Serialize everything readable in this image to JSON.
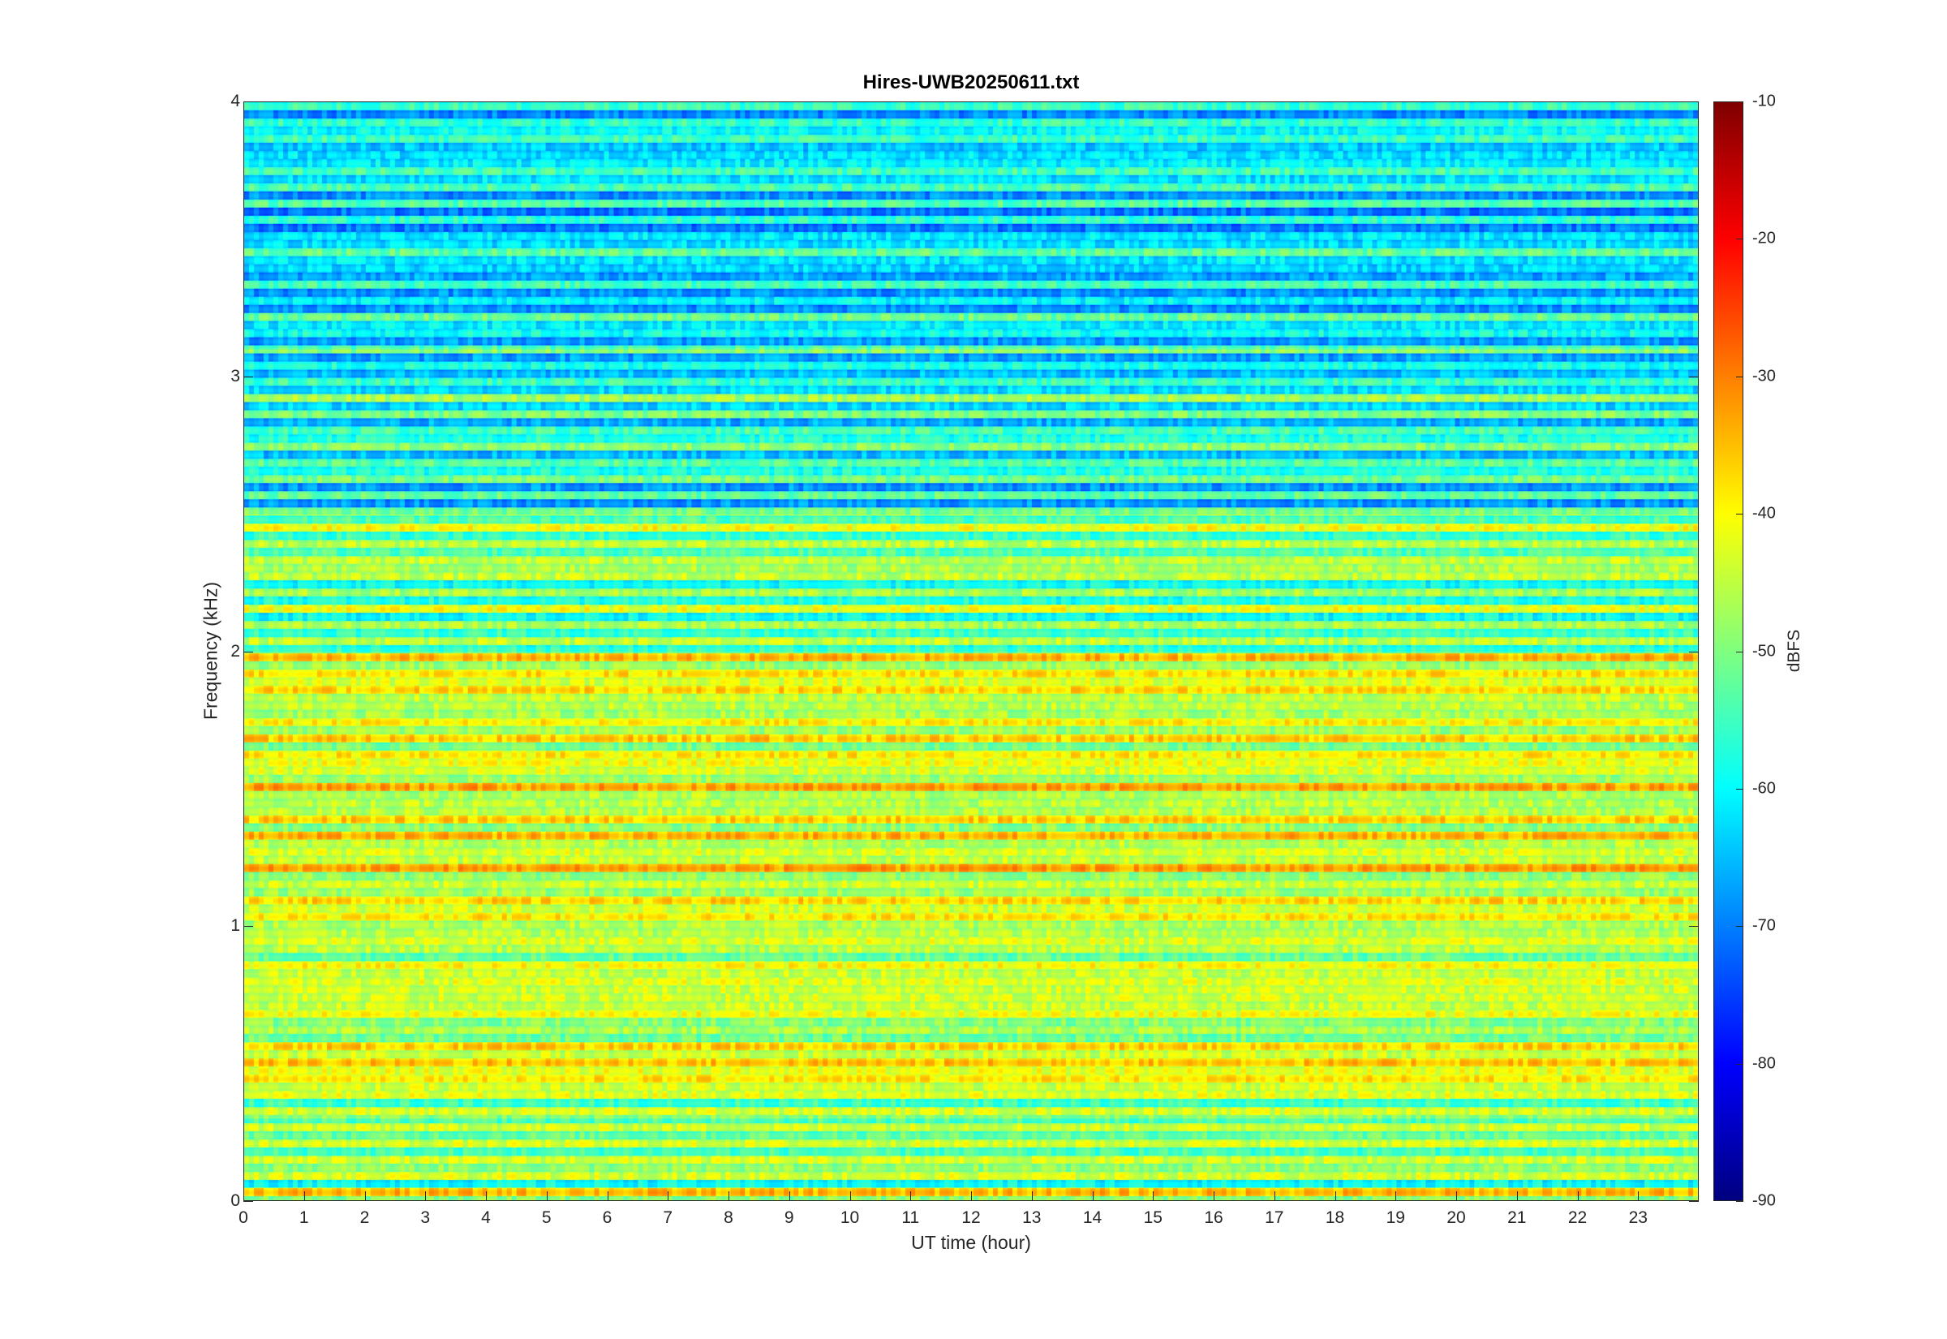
{
  "chart_data": {
    "type": "heatmap",
    "title": "Hires-UWB20250611.txt",
    "xlabel": "UT time (hour)",
    "ylabel": "Frequency (kHz)",
    "xlim": [
      0,
      24
    ],
    "ylim": [
      0,
      4
    ],
    "x_ticks": [
      "0",
      "1",
      "2",
      "3",
      "4",
      "5",
      "6",
      "7",
      "8",
      "9",
      "10",
      "11",
      "12",
      "13",
      "14",
      "15",
      "16",
      "17",
      "18",
      "19",
      "20",
      "21",
      "22",
      "23"
    ],
    "y_ticks": [
      "0",
      "1",
      "2",
      "3",
      "4"
    ],
    "colorbar": {
      "label": "dBFS",
      "range": [
        -90,
        -10
      ],
      "ticks": [
        "-10",
        "-20",
        "-30",
        "-40",
        "-50",
        "-60",
        "-70",
        "-80",
        "-90"
      ],
      "colormap": "jet"
    },
    "levels_by_frequency_band": [
      {
        "band_khz": [
          0.0,
          0.05
        ],
        "dbfs": -42
      },
      {
        "band_khz": [
          0.05,
          0.3
        ],
        "dbfs": -52
      },
      {
        "band_khz": [
          0.3,
          1.3
        ],
        "dbfs": -46
      },
      {
        "band_khz": [
          1.3,
          2.0
        ],
        "dbfs": -45
      },
      {
        "band_khz": [
          2.0,
          2.5
        ],
        "dbfs": -50
      },
      {
        "band_khz": [
          2.5,
          3.1
        ],
        "dbfs": -60
      },
      {
        "band_khz": [
          3.1,
          4.0
        ],
        "dbfs": -64
      }
    ],
    "grid": false
  }
}
